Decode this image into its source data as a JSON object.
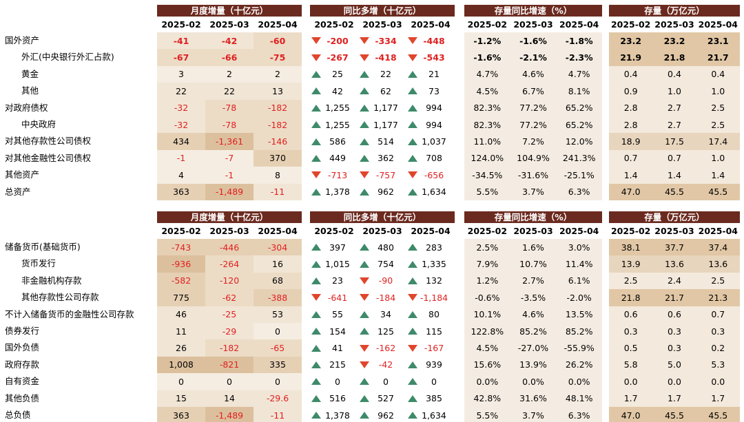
{
  "headers": {
    "monthly": "月度增量（十亿元）",
    "yoy": "同比多增（十亿元）",
    "growth": "存量同比增速（%）",
    "stock": "存量（万亿元）"
  },
  "months": [
    "2025-02",
    "2025-03",
    "2025-04"
  ],
  "assets": {
    "rows": [
      {
        "label": "国外资产",
        "indent": false,
        "bold": true,
        "monthly": [
          "-41",
          "-42",
          "-60"
        ],
        "yoy": [
          "-200",
          "-334",
          "-448"
        ],
        "yoy_dir": [
          "down",
          "down",
          "down"
        ],
        "growth": [
          "-1.2%",
          "-1.6%",
          "-1.8%"
        ],
        "stock": [
          "23.2",
          "23.2",
          "23.1"
        ]
      },
      {
        "label": "外汇(中央银行外汇占款)",
        "indent": true,
        "bold": true,
        "monthly": [
          "-67",
          "-66",
          "-75"
        ],
        "yoy": [
          "-267",
          "-418",
          "-543"
        ],
        "yoy_dir": [
          "down",
          "down",
          "down"
        ],
        "growth": [
          "-1.6%",
          "-2.1%",
          "-2.3%"
        ],
        "stock": [
          "21.9",
          "21.8",
          "21.7"
        ]
      },
      {
        "label": "黄金",
        "indent": true,
        "bold": false,
        "monthly": [
          "3",
          "2",
          "2"
        ],
        "yoy": [
          "25",
          "22",
          "21"
        ],
        "yoy_dir": [
          "up",
          "up",
          "up"
        ],
        "growth": [
          "4.7%",
          "4.6%",
          "4.7%"
        ],
        "stock": [
          "0.4",
          "0.4",
          "0.4"
        ]
      },
      {
        "label": "其他",
        "indent": true,
        "bold": false,
        "monthly": [
          "22",
          "22",
          "13"
        ],
        "yoy": [
          "42",
          "62",
          "73"
        ],
        "yoy_dir": [
          "up",
          "up",
          "up"
        ],
        "growth": [
          "4.5%",
          "6.7%",
          "8.1%"
        ],
        "stock": [
          "0.9",
          "1.0",
          "1.0"
        ]
      },
      {
        "label": "对政府债权",
        "indent": false,
        "bold": false,
        "monthly": [
          "-32",
          "-78",
          "-182"
        ],
        "yoy": [
          "1,255",
          "1,177",
          "994"
        ],
        "yoy_dir": [
          "up",
          "up",
          "up"
        ],
        "growth": [
          "82.3%",
          "77.2%",
          "65.2%"
        ],
        "stock": [
          "2.8",
          "2.7",
          "2.5"
        ]
      },
      {
        "label": "中央政府",
        "indent": true,
        "bold": false,
        "monthly": [
          "-32",
          "-78",
          "-182"
        ],
        "yoy": [
          "1,255",
          "1,177",
          "994"
        ],
        "yoy_dir": [
          "up",
          "up",
          "up"
        ],
        "growth": [
          "82.3%",
          "77.2%",
          "65.2%"
        ],
        "stock": [
          "2.8",
          "2.7",
          "2.5"
        ]
      },
      {
        "label": "对其他存款性公司债权",
        "indent": false,
        "bold": false,
        "monthly": [
          "434",
          "-1,361",
          "-146"
        ],
        "yoy": [
          "586",
          "514",
          "1,037"
        ],
        "yoy_dir": [
          "up",
          "up",
          "up"
        ],
        "growth": [
          "11.0%",
          "7.2%",
          "12.0%"
        ],
        "stock": [
          "18.9",
          "17.5",
          "17.4"
        ]
      },
      {
        "label": "对其他金融性公司债权",
        "indent": false,
        "bold": false,
        "monthly": [
          "-1",
          "-7",
          "370"
        ],
        "yoy": [
          "449",
          "362",
          "708"
        ],
        "yoy_dir": [
          "up",
          "up",
          "up"
        ],
        "growth": [
          "124.0%",
          "104.9%",
          "241.3%"
        ],
        "stock": [
          "0.7",
          "0.7",
          "1.0"
        ]
      },
      {
        "label": "其他资产",
        "indent": false,
        "bold": false,
        "monthly": [
          "4",
          "-1",
          "8"
        ],
        "yoy": [
          "-713",
          "-757",
          "-656"
        ],
        "yoy_dir": [
          "down",
          "down",
          "down"
        ],
        "growth": [
          "-34.5%",
          "-31.6%",
          "-25.1%"
        ],
        "stock": [
          "1.4",
          "1.4",
          "1.4"
        ]
      },
      {
        "label": "总资产",
        "indent": false,
        "bold": false,
        "monthly": [
          "363",
          "-1,489",
          "-11"
        ],
        "yoy": [
          "1,378",
          "962",
          "1,634"
        ],
        "yoy_dir": [
          "up",
          "up",
          "up"
        ],
        "growth": [
          "5.5%",
          "3.7%",
          "6.3%"
        ],
        "stock": [
          "47.0",
          "45.5",
          "45.5"
        ]
      }
    ]
  },
  "liabilities": {
    "rows": [
      {
        "label": "储备货币(基础货币)",
        "indent": false,
        "bold": false,
        "monthly": [
          "-743",
          "-446",
          "-304"
        ],
        "yoy": [
          "397",
          "480",
          "283"
        ],
        "yoy_dir": [
          "up",
          "up",
          "up"
        ],
        "growth": [
          "2.5%",
          "1.6%",
          "3.0%"
        ],
        "stock": [
          "38.1",
          "37.7",
          "37.4"
        ]
      },
      {
        "label": "货币发行",
        "indent": true,
        "bold": false,
        "monthly": [
          "-936",
          "-264",
          "16"
        ],
        "yoy": [
          "1,015",
          "754",
          "1,335"
        ],
        "yoy_dir": [
          "up",
          "up",
          "up"
        ],
        "growth": [
          "7.9%",
          "10.7%",
          "11.4%"
        ],
        "stock": [
          "13.9",
          "13.6",
          "13.6"
        ]
      },
      {
        "label": "非金融机构存款",
        "indent": true,
        "bold": false,
        "monthly": [
          "-582",
          "-120",
          "68"
        ],
        "yoy": [
          "23",
          "-90",
          "132"
        ],
        "yoy_dir": [
          "up",
          "down",
          "up"
        ],
        "growth": [
          "1.2%",
          "2.7%",
          "6.1%"
        ],
        "stock": [
          "2.5",
          "2.4",
          "2.5"
        ]
      },
      {
        "label": "其他存款性公司存款",
        "indent": true,
        "bold": false,
        "monthly": [
          "775",
          "-62",
          "-388"
        ],
        "yoy": [
          "-641",
          "-184",
          "-1,184"
        ],
        "yoy_dir": [
          "down",
          "down",
          "down"
        ],
        "growth": [
          "-0.6%",
          "-3.5%",
          "-2.0%"
        ],
        "stock": [
          "21.8",
          "21.7",
          "21.3"
        ]
      },
      {
        "label": "不计入储备货币的金融性公司存款",
        "indent": false,
        "bold": false,
        "monthly": [
          "46",
          "-25",
          "53"
        ],
        "yoy": [
          "55",
          "34",
          "80"
        ],
        "yoy_dir": [
          "up",
          "up",
          "up"
        ],
        "growth": [
          "10.1%",
          "4.6%",
          "13.5%"
        ],
        "stock": [
          "0.6",
          "0.6",
          "0.7"
        ]
      },
      {
        "label": "债券发行",
        "indent": false,
        "bold": false,
        "monthly": [
          "11",
          "-29",
          "0"
        ],
        "yoy": [
          "154",
          "125",
          "115"
        ],
        "yoy_dir": [
          "up",
          "up",
          "up"
        ],
        "growth": [
          "122.8%",
          "85.2%",
          "85.2%"
        ],
        "stock": [
          "0.3",
          "0.3",
          "0.3"
        ]
      },
      {
        "label": "国外负债",
        "indent": false,
        "bold": false,
        "monthly": [
          "26",
          "-182",
          "-65"
        ],
        "yoy": [
          "41",
          "-162",
          "-167"
        ],
        "yoy_dir": [
          "up",
          "down",
          "down"
        ],
        "growth": [
          "4.5%",
          "-27.0%",
          "-55.9%"
        ],
        "stock": [
          "0.5",
          "0.3",
          "0.2"
        ]
      },
      {
        "label": "政府存款",
        "indent": false,
        "bold": false,
        "monthly": [
          "1,008",
          "-821",
          "335"
        ],
        "yoy": [
          "215",
          "-42",
          "939"
        ],
        "yoy_dir": [
          "up",
          "down",
          "up"
        ],
        "growth": [
          "15.6%",
          "13.9%",
          "26.2%"
        ],
        "stock": [
          "5.8",
          "5.0",
          "5.3"
        ]
      },
      {
        "label": "自有资金",
        "indent": false,
        "bold": false,
        "monthly": [
          "0",
          "0",
          "0"
        ],
        "yoy": [
          "0",
          "0",
          "0"
        ],
        "yoy_dir": [
          "up",
          "up",
          "up"
        ],
        "growth": [
          "0.0%",
          "0.0%",
          "0.0%"
        ],
        "stock": [
          "0.0",
          "0.0",
          "0.0"
        ]
      },
      {
        "label": "其他负债",
        "indent": false,
        "bold": false,
        "monthly": [
          "15",
          "14",
          "-29.6"
        ],
        "yoy": [
          "516",
          "527",
          "385"
        ],
        "yoy_dir": [
          "up",
          "up",
          "up"
        ],
        "growth": [
          "42.8%",
          "31.6%",
          "48.1%"
        ],
        "stock": [
          "1.7",
          "1.7",
          "1.7"
        ]
      },
      {
        "label": "总负债",
        "indent": false,
        "bold": false,
        "monthly": [
          "363",
          "-1,489",
          "-11"
        ],
        "yoy": [
          "1,378",
          "962",
          "1,634"
        ],
        "yoy_dir": [
          "up",
          "up",
          "up"
        ],
        "growth": [
          "5.5%",
          "3.7%",
          "6.3%"
        ],
        "stock": [
          "47.0",
          "45.5",
          "45.5"
        ]
      }
    ]
  }
}
